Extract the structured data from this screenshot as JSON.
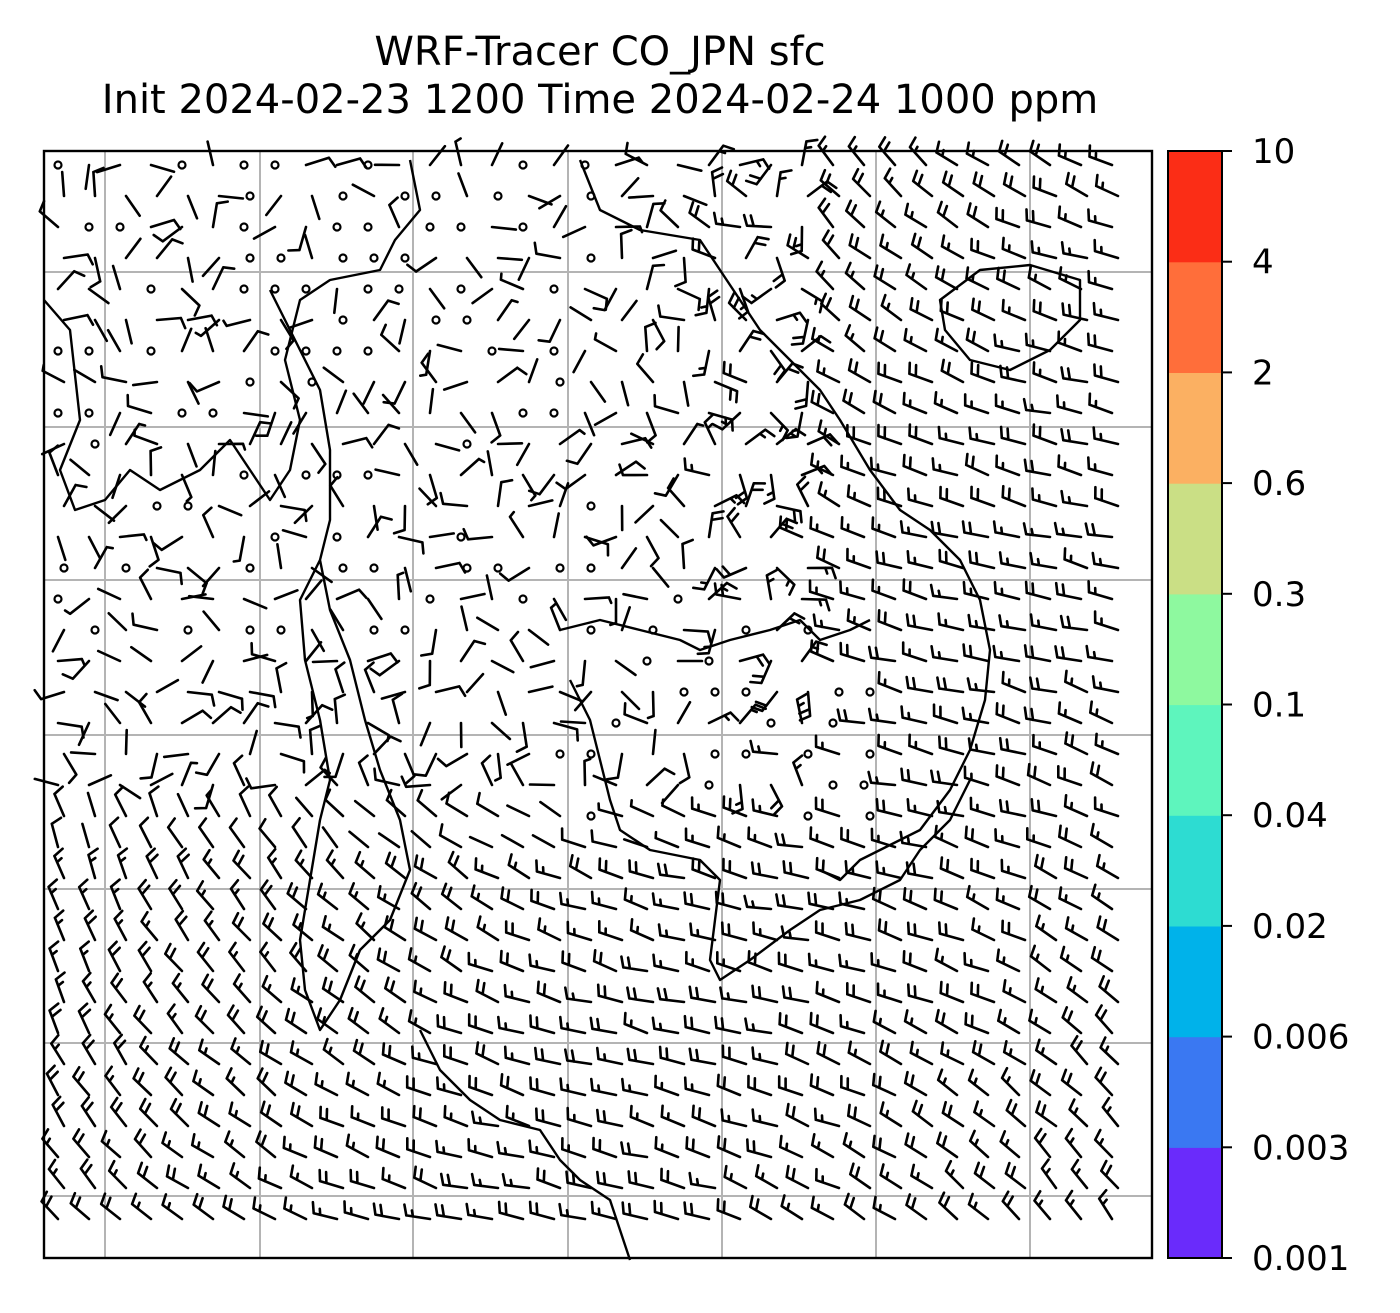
{
  "title": {
    "line1": "WRF-Tracer CO_JPN sfc",
    "line2": "Init 2024-02-23 1200 Time 2024-02-24 1000 ppm"
  },
  "colorbar": {
    "bins": [
      {
        "label": "0.001",
        "color": "#6a2bfb"
      },
      {
        "label": "0.003",
        "color": "#3a78f2"
      },
      {
        "label": "0.006",
        "color": "#00b2ea"
      },
      {
        "label": "0.02",
        "color": "#2ddcd2"
      },
      {
        "label": "0.04",
        "color": "#5ef5bd"
      },
      {
        "label": "0.1",
        "color": "#8ef99f"
      },
      {
        "label": "0.3",
        "color": "#cadf85"
      },
      {
        "label": "0.6",
        "color": "#fbb062"
      },
      {
        "label": "2",
        "color": "#ff6e3a"
      },
      {
        "label": "4",
        "color": "#fb2d16"
      }
    ],
    "top_label": "10"
  },
  "colors": {
    "gridline": "#b4b4b4",
    "coastline": "#000000",
    "barb": "#000000"
  }
}
